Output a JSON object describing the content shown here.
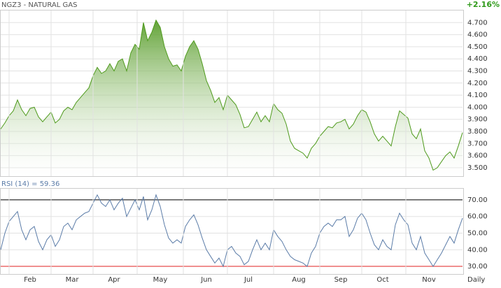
{
  "chart_data": [
    {
      "type": "area",
      "title": "NGZ3 - NATURAL GAS",
      "annotation": "+2.16%",
      "color": "#4e9a1c",
      "values": [
        3.82,
        3.87,
        3.93,
        3.97,
        4.06,
        3.98,
        3.93,
        3.99,
        4.0,
        3.92,
        3.88,
        3.92,
        3.96,
        3.87,
        3.9,
        3.97,
        4.0,
        3.98,
        4.04,
        4.08,
        4.12,
        4.16,
        4.26,
        4.33,
        4.28,
        4.3,
        4.36,
        4.3,
        4.38,
        4.4,
        4.3,
        4.45,
        4.52,
        4.48,
        4.7,
        4.55,
        4.62,
        4.72,
        4.66,
        4.5,
        4.4,
        4.34,
        4.35,
        4.3,
        4.42,
        4.5,
        4.55,
        4.48,
        4.36,
        4.22,
        4.14,
        4.04,
        4.08,
        3.98,
        4.1,
        4.06,
        4.02,
        3.94,
        3.83,
        3.84,
        3.9,
        3.96,
        3.88,
        3.93,
        3.88,
        4.03,
        3.98,
        3.95,
        3.86,
        3.72,
        3.66,
        3.64,
        3.62,
        3.58,
        3.66,
        3.7,
        3.76,
        3.8,
        3.84,
        3.83,
        3.87,
        3.88,
        3.9,
        3.82,
        3.86,
        3.93,
        3.98,
        3.96,
        3.88,
        3.78,
        3.72,
        3.76,
        3.72,
        3.68,
        3.84,
        3.97,
        3.94,
        3.91,
        3.78,
        3.74,
        3.82,
        3.64,
        3.58,
        3.48,
        3.5,
        3.55,
        3.6,
        3.63,
        3.58,
        3.68,
        3.79
      ],
      "ylim": [
        3.43,
        4.8
      ],
      "yticks": [
        {
          "value": 3.5,
          "label": "3.500"
        },
        {
          "value": 3.6,
          "label": "3.600"
        },
        {
          "value": 3.7,
          "label": "3.700"
        },
        {
          "value": 3.8,
          "label": "3.800"
        },
        {
          "value": 3.9,
          "label": "3.900"
        },
        {
          "value": 4.0,
          "label": "4.000"
        },
        {
          "value": 4.1,
          "label": "4.100"
        },
        {
          "value": 4.2,
          "label": "4.200"
        },
        {
          "value": 4.3,
          "label": "4.300"
        },
        {
          "value": 4.4,
          "label": "4.400"
        },
        {
          "value": 4.5,
          "label": "4.500"
        },
        {
          "value": 4.6,
          "label": "4.600"
        },
        {
          "value": 4.7,
          "label": "4.700"
        }
      ],
      "grid": true
    },
    {
      "type": "line",
      "title": "RSI (14) = 59.36",
      "color": "#5b7ca8",
      "x_label": "Daily",
      "categories": [
        null,
        null,
        null,
        null,
        null,
        null,
        null,
        "Feb",
        null,
        null,
        null,
        null,
        null,
        null,
        null,
        null,
        null,
        "Mar",
        null,
        null,
        null,
        null,
        null,
        null,
        null,
        null,
        null,
        "Apr",
        null,
        null,
        null,
        null,
        null,
        null,
        null,
        null,
        null,
        null,
        "May",
        null,
        null,
        null,
        null,
        null,
        null,
        null,
        null,
        null,
        null,
        "Jun",
        null,
        null,
        null,
        null,
        null,
        null,
        null,
        null,
        null,
        "Jul",
        null,
        null,
        null,
        null,
        null,
        null,
        null,
        null,
        null,
        null,
        null,
        "Aug",
        null,
        null,
        null,
        null,
        null,
        null,
        null,
        null,
        null,
        "Sep",
        null,
        null,
        null,
        null,
        null,
        null,
        null,
        null,
        null,
        "Oct",
        null,
        null,
        null,
        null,
        null,
        null,
        null,
        null,
        null,
        null,
        "Nov",
        null,
        null,
        null,
        null,
        null,
        null,
        null,
        null
      ],
      "values": [
        40,
        50,
        57,
        60,
        63,
        52,
        46,
        52,
        54,
        45,
        40,
        46,
        49,
        42,
        46,
        54,
        56,
        52,
        58,
        60,
        62,
        63,
        68,
        73,
        68,
        66,
        70,
        64,
        68,
        71,
        60,
        65,
        70,
        64,
        72,
        58,
        64,
        73,
        66,
        55,
        47,
        44,
        46,
        44,
        54,
        58,
        61,
        55,
        47,
        40,
        36,
        32,
        35,
        30,
        40,
        42,
        38,
        36,
        31,
        33,
        40,
        46,
        40,
        44,
        40,
        52,
        48,
        45,
        40,
        36,
        34,
        33,
        32,
        30,
        38,
        42,
        50,
        54,
        56,
        54,
        58,
        58,
        60,
        48,
        52,
        59,
        62,
        58,
        50,
        43,
        40,
        46,
        42,
        40,
        55,
        62,
        58,
        55,
        44,
        40,
        48,
        38,
        34,
        30,
        34,
        38,
        43,
        48,
        44,
        52,
        59
      ],
      "ylim": [
        25.4,
        76.7
      ],
      "yticks": [
        {
          "value": 30,
          "label": "30.00"
        },
        {
          "value": 40,
          "label": "40.00"
        },
        {
          "value": 50,
          "label": "50.00"
        },
        {
          "value": 60,
          "label": "60.00"
        },
        {
          "value": 70,
          "label": "70.00"
        }
      ],
      "reference_lines": [
        {
          "value": 70,
          "color": "#000000"
        },
        {
          "value": 30,
          "color": "#e02020"
        }
      ],
      "grid": true
    }
  ]
}
